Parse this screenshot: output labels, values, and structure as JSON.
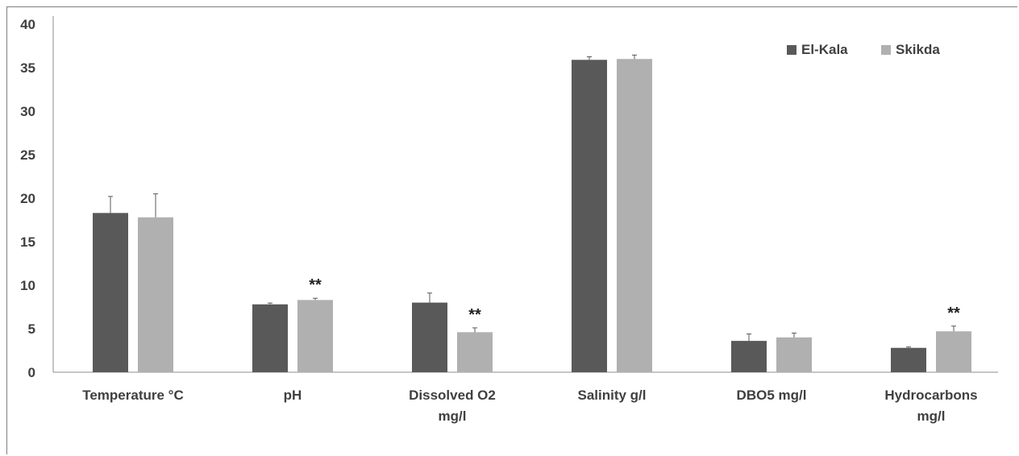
{
  "chart_data": {
    "type": "bar",
    "title": "",
    "xlabel": "",
    "ylabel": "",
    "ylim": [
      0,
      40
    ],
    "yticks": [
      0,
      5,
      10,
      15,
      20,
      25,
      30,
      35,
      40
    ],
    "grid": false,
    "legend_position": "top-right",
    "categories": [
      [
        "Temperature °C"
      ],
      [
        "pH"
      ],
      [
        "Dissolved O2",
        "mg/l"
      ],
      [
        "Salinity g/l"
      ],
      [
        "DBO5 mg/l"
      ],
      [
        "Hydrocarbons",
        "mg/l"
      ]
    ],
    "series": [
      {
        "name": "El-Kala",
        "color": "#595959",
        "values": [
          18.3,
          7.8,
          8.0,
          35.9,
          3.6,
          2.8
        ],
        "errors": [
          1.9,
          0.15,
          1.1,
          0.35,
          0.8,
          0.1
        ]
      },
      {
        "name": "Skikda",
        "color": "#b0b0b0",
        "values": [
          17.8,
          8.3,
          4.6,
          36.0,
          4.0,
          4.7
        ],
        "errors": [
          2.7,
          0.2,
          0.5,
          0.45,
          0.5,
          0.6
        ]
      }
    ],
    "annotations": [
      {
        "category_index": 1,
        "series_index": 1,
        "text": "**"
      },
      {
        "category_index": 2,
        "series_index": 1,
        "text": "**"
      },
      {
        "category_index": 5,
        "series_index": 1,
        "text": "**"
      }
    ]
  }
}
